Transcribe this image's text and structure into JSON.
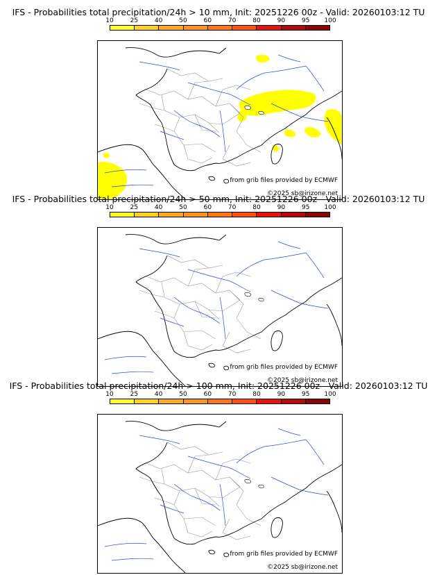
{
  "colorbar": {
    "ticks": [
      "10",
      "25",
      "40",
      "50",
      "60",
      "70",
      "80",
      "90",
      "95",
      "100"
    ],
    "colors": [
      "#ffff22",
      "#ffd21e",
      "#ffaa1e",
      "#ff9619",
      "#ff7814",
      "#ff5010",
      "#e6140c",
      "#b40a0a",
      "#8c0505",
      "#5a0000"
    ]
  },
  "panels": [
    {
      "title": "IFS - Probabilities total precipitation/24h > 10 mm, Init: 20251226 00z - Valid: 20260103:12 TU",
      "credit_source": "from grib files provided by ECMWF",
      "credit_copyright": "©2025 sb@irizone.net",
      "precip_fill_color": "#ffff00"
    },
    {
      "title": "IFS - Probabilities total precipitation/24h > 50 mm, Init: 20251226 00z - Valid: 20260103:12 TU",
      "credit_source": "from grib files provided by ECMWF",
      "credit_copyright": "©2025 sb@irizone.net"
    },
    {
      "title": "IFS - Probabilities total precipitation/24h > 100 mm, Init: 20251226 00z - Valid: 20260103:12 TU",
      "credit_source": "from grib files provided by ECMWF",
      "credit_copyright": "©2025 sb@irizone.net"
    }
  ]
}
